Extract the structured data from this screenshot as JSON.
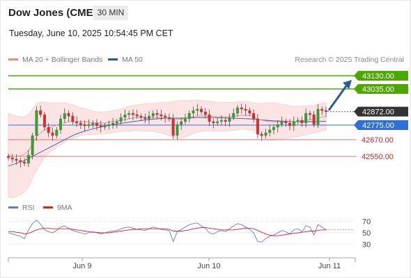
{
  "header": {
    "title": "Dow Jones (CME)",
    "timeframe": "30 MIN",
    "timestamp": "Tuesday, June 10, 2025 10:54:45 PM CET"
  },
  "legend": {
    "items": [
      {
        "label": "MA 20 + Bollinger Bands",
        "color": "#f28b82"
      },
      {
        "label": "MA 50",
        "color": "#2b579a"
      }
    ],
    "credit": "Research © 2025 Trading Central"
  },
  "rsi_legend": {
    "items": [
      {
        "label": "RSI",
        "color": "#5b7bd6"
      },
      {
        "label": "9MA",
        "color": "#e02020"
      }
    ]
  },
  "colors": {
    "green_level": "#4ca800",
    "blue_level": "#2f6fd8",
    "red_level": "#e37171",
    "current_price_bg": "#333333",
    "candle_up": "#3a9a3a",
    "candle_down": "#cc3333",
    "bollinger_fill": "#fde2e2",
    "arrow": "#2b579a"
  },
  "chart_data": [
    {
      "type": "candlestick",
      "title": "",
      "x_labels": [
        "Jun 9",
        "Jun 10",
        "Jun 11"
      ],
      "ylim": [
        42300,
        43200
      ],
      "levels": [
        {
          "value": 43130,
          "label": "43130.00",
          "style": "resistance",
          "color": "#4ca800"
        },
        {
          "value": 43035,
          "label": "43035.00",
          "style": "resistance",
          "color": "#4ca800"
        },
        {
          "value": 42872,
          "label": "42872.00",
          "style": "current",
          "color": "#333333"
        },
        {
          "value": 42775,
          "label": "42775.00",
          "style": "pivot",
          "color": "#2f6fd8"
        },
        {
          "value": 42670,
          "label": "42670.00",
          "style": "support",
          "color": "#e37171"
        },
        {
          "value": 42550,
          "label": "42550.00",
          "style": "support",
          "color": "#e37171"
        }
      ],
      "close_series": [
        42540,
        42530,
        42520,
        42510,
        42500,
        42560,
        42700,
        42880,
        42850,
        42760,
        42720,
        42700,
        42740,
        42820,
        42860,
        42840,
        42800,
        42790,
        42780,
        42770,
        42780,
        42790,
        42770,
        42760,
        42770,
        42780,
        42790,
        42800,
        42830,
        42850,
        42860,
        42850,
        42840,
        42830,
        42820,
        42840,
        42860,
        42850,
        42840,
        42830,
        42820,
        42700,
        42780,
        42800,
        42820,
        42860,
        42880,
        42890,
        42870,
        42850,
        42800,
        42790,
        42800,
        42810,
        42800,
        42830,
        42860,
        42900,
        42890,
        42880,
        42860,
        42820,
        42710,
        42700,
        42720,
        42740,
        42760,
        42780,
        42800,
        42790,
        42770,
        42800,
        42810,
        42790,
        42860,
        42850,
        42780,
        42890,
        42880,
        42872
      ],
      "ma20_series": [
        42560,
        42550,
        42550,
        42555,
        42565,
        42590,
        42640,
        42690,
        42720,
        42740,
        42755,
        42765,
        42775,
        42785,
        42795,
        42800,
        42800,
        42800,
        42800,
        42800,
        42795,
        42790,
        42790,
        42790,
        42790,
        42795,
        42800,
        42805,
        42810,
        42815,
        42820,
        42825,
        42830,
        42830,
        42830,
        42830,
        42830,
        42830,
        42828,
        42825,
        42820,
        42815,
        42815,
        42818,
        42822,
        42828,
        42835,
        42840,
        42842,
        42842,
        42840,
        42838,
        42836,
        42835,
        42835,
        42836,
        42838,
        42842,
        42845,
        42845,
        42842,
        42835,
        42820,
        42810,
        42805,
        42800,
        42800,
        42800,
        42800,
        42800,
        42800,
        42800,
        42802,
        42805,
        42810,
        42815,
        42818,
        42825,
        42832,
        42838
      ],
      "ma50_series": [
        42480,
        42490,
        42500,
        42510,
        42520,
        42535,
        42550,
        42565,
        42580,
        42595,
        42610,
        42625,
        42640,
        42655,
        42670,
        42685,
        42700,
        42712,
        42722,
        42732,
        42740,
        42748,
        42755,
        42762,
        42768,
        42773,
        42778,
        42783,
        42788,
        42792,
        42796,
        42800,
        42804,
        42808,
        42812,
        42815,
        42818,
        42820,
        42822,
        42824,
        42825,
        42825,
        42825,
        42825,
        42826,
        42827,
        42828,
        42829,
        42830,
        42830,
        42830,
        42829,
        42828,
        42827,
        42826,
        42825,
        42824,
        42823,
        42822,
        42821,
        42820,
        42818,
        42815,
        42812,
        42810,
        42808,
        42806,
        42805,
        42804,
        42803,
        42802,
        42801,
        42800,
        42800,
        42800,
        42800,
        42800,
        42801,
        42802,
        42803
      ],
      "bb_width": [
        300,
        300,
        290,
        280,
        270,
        260,
        250,
        240,
        220,
        200,
        180,
        170,
        160,
        150,
        140,
        130,
        120,
        110,
        100,
        95,
        90,
        85,
        80,
        80,
        80,
        80,
        80,
        80,
        80,
        85,
        90,
        90,
        90,
        95,
        100,
        100,
        100,
        105,
        110,
        115,
        120,
        130,
        135,
        135,
        130,
        125,
        120,
        115,
        110,
        108,
        106,
        105,
        104,
        103,
        102,
        101,
        100,
        100,
        100,
        100,
        100,
        100,
        110,
        120,
        130,
        135,
        135,
        130,
        125,
        120,
        115,
        110,
        108,
        106,
        104,
        102,
        100,
        100,
        100,
        100
      ]
    },
    {
      "type": "line",
      "title": "",
      "name": "RSI panel",
      "ylim": [
        20,
        80
      ],
      "y_ticks": [
        70,
        50,
        30
      ],
      "series": [
        {
          "name": "RSI",
          "color": "#5b7bd6",
          "values": [
            50,
            48,
            46,
            44,
            40,
            55,
            66,
            72,
            65,
            55,
            52,
            50,
            54,
            60,
            62,
            58,
            54,
            52,
            50,
            48,
            50,
            52,
            50,
            48,
            50,
            52,
            53,
            54,
            57,
            59,
            60,
            58,
            56,
            55,
            54,
            57,
            60,
            58,
            56,
            55,
            54,
            35,
            52,
            56,
            60,
            64,
            66,
            67,
            62,
            58,
            50,
            48,
            52,
            54,
            52,
            57,
            62,
            66,
            64,
            60,
            56,
            50,
            35,
            34,
            40,
            44,
            46,
            50,
            54,
            52,
            48,
            55,
            57,
            52,
            62,
            60,
            46,
            64,
            60,
            55
          ]
        },
        {
          "name": "9MA",
          "color": "#e02020",
          "values": [
            52,
            52,
            51,
            50,
            48,
            49,
            52,
            55,
            57,
            58,
            58,
            57,
            57,
            57,
            57,
            57,
            56,
            55,
            54,
            53,
            52,
            51,
            51,
            50,
            50,
            50,
            51,
            52,
            53,
            54,
            55,
            56,
            56,
            57,
            57,
            57,
            57,
            57,
            57,
            57,
            56,
            53,
            53,
            53,
            54,
            55,
            57,
            58,
            59,
            59,
            58,
            57,
            56,
            55,
            55,
            55,
            55,
            56,
            57,
            58,
            58,
            57,
            54,
            51,
            48,
            46,
            45,
            45,
            46,
            47,
            48,
            49,
            50,
            51,
            52,
            53,
            53,
            54,
            55,
            55
          ]
        }
      ]
    }
  ]
}
